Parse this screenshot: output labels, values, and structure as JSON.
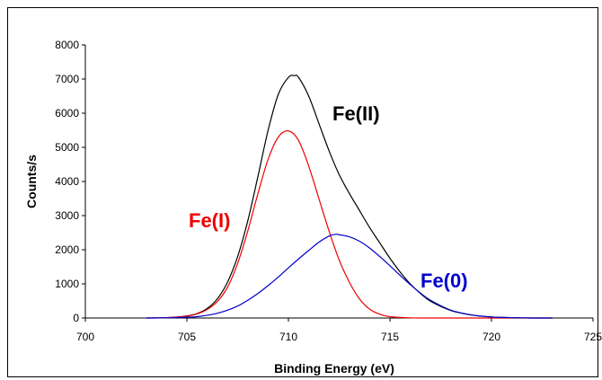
{
  "chart_data": {
    "type": "line",
    "xlabel": "Binding Energy (eV)",
    "ylabel": "Counts/s",
    "xlim": [
      700,
      725
    ],
    "ylim": [
      0,
      8000
    ],
    "xticks": [
      700,
      705,
      710,
      715,
      720,
      725
    ],
    "yticks": [
      0,
      1000,
      2000,
      3000,
      4000,
      5000,
      6000,
      7000,
      8000
    ],
    "grid": false,
    "series": [
      {
        "name": "Fe(II)",
        "color": "#000000",
        "x": [
          703,
          704,
          705,
          705.5,
          706,
          706.5,
          707,
          707.5,
          708,
          708.5,
          709,
          709.5,
          710,
          710.3,
          710.5,
          711,
          711.5,
          712,
          712.5,
          713,
          713.5,
          714,
          714.5,
          715,
          715.5,
          716,
          716.5,
          717,
          718,
          719,
          720,
          721,
          722,
          723
        ],
        "y": [
          0,
          10,
          60,
          130,
          280,
          560,
          1050,
          1800,
          2850,
          4150,
          5500,
          6550,
          7050,
          7100,
          7050,
          6500,
          5700,
          4900,
          4200,
          3650,
          3150,
          2650,
          2200,
          1750,
          1350,
          1000,
          720,
          490,
          220,
          90,
          30,
          10,
          0,
          0
        ]
      },
      {
        "name": "Fe(I)",
        "color": "#ee0000",
        "x": [
          703,
          704,
          705,
          705.5,
          706,
          706.5,
          707,
          707.5,
          708,
          708.5,
          709,
          709.5,
          710,
          710.5,
          711,
          711.5,
          712,
          712.5,
          713,
          713.5,
          714,
          714.5,
          715,
          716,
          717,
          718,
          719,
          720,
          721,
          722,
          723
        ],
        "y": [
          0,
          10,
          50,
          120,
          250,
          480,
          900,
          1600,
          2550,
          3650,
          4650,
          5300,
          5480,
          5200,
          4450,
          3500,
          2550,
          1700,
          1050,
          560,
          260,
          110,
          40,
          5,
          0,
          0,
          0,
          0,
          0,
          0,
          0
        ]
      },
      {
        "name": "Fe(0)",
        "color": "#0000cc",
        "x": [
          703,
          704,
          705,
          705.5,
          706,
          706.5,
          707,
          707.5,
          708,
          708.5,
          709,
          709.5,
          710,
          710.5,
          711,
          711.5,
          712,
          712.3,
          712.5,
          713,
          713.5,
          714,
          714.5,
          715,
          715.5,
          716,
          716.5,
          717,
          718,
          719,
          720,
          721,
          722,
          723
        ],
        "y": [
          0,
          5,
          20,
          40,
          80,
          140,
          230,
          350,
          520,
          720,
          950,
          1200,
          1470,
          1730,
          1980,
          2220,
          2400,
          2450,
          2440,
          2380,
          2250,
          2050,
          1800,
          1530,
          1250,
          980,
          730,
          520,
          230,
          90,
          30,
          10,
          0,
          0
        ]
      }
    ]
  }
}
